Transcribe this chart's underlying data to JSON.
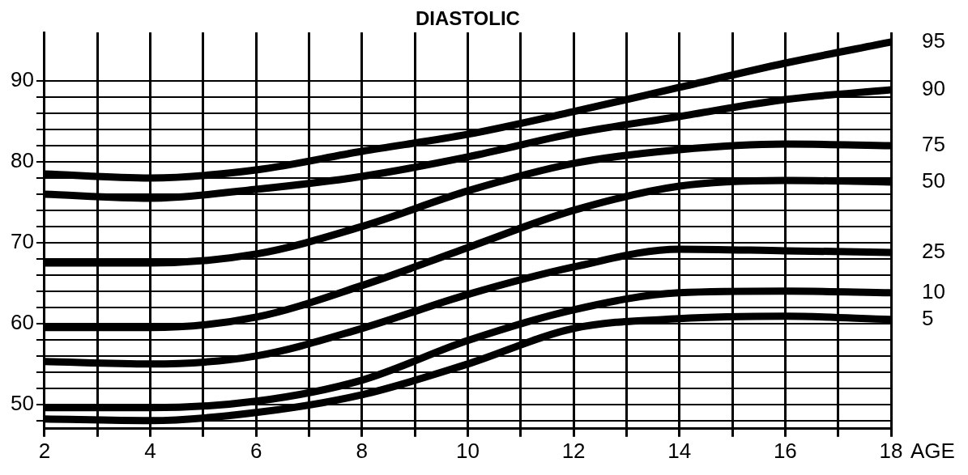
{
  "chart_data": {
    "type": "line",
    "title": "DIASTOLIC",
    "xlabel": "AGE",
    "x": [
      2,
      4,
      6,
      8,
      10,
      12,
      14,
      16,
      18
    ],
    "series": [
      {
        "name": "95",
        "color": "#000000",
        "values": [
          78.5,
          78,
          79,
          81.3,
          83.4,
          86.2,
          89.2,
          92.2,
          94.8
        ]
      },
      {
        "name": "90",
        "color": "#000000",
        "values": [
          76,
          75.5,
          76.6,
          78.2,
          80.6,
          83.5,
          85.6,
          87.7,
          88.9
        ]
      },
      {
        "name": "75",
        "color": "#000000",
        "values": [
          67.5,
          67.5,
          68.6,
          72,
          76.4,
          79.8,
          81.5,
          82.2,
          82
        ]
      },
      {
        "name": "50",
        "color": "#000000",
        "values": [
          59.5,
          59.5,
          60.8,
          64.7,
          69.4,
          74,
          77,
          77.7,
          77.5
        ]
      },
      {
        "name": "25",
        "color": "#000000",
        "values": [
          55.3,
          55,
          56,
          59.4,
          63.6,
          67,
          69.2,
          69,
          68.8
        ]
      },
      {
        "name": "10",
        "color": "#000000",
        "values": [
          49.6,
          49.6,
          50.4,
          53,
          57.9,
          61.7,
          63.8,
          64,
          63.8
        ]
      },
      {
        "name": "5",
        "color": "#000000",
        "values": [
          48.2,
          48,
          49,
          51.2,
          55,
          59.4,
          60.6,
          60.9,
          60.5
        ]
      }
    ],
    "xlim": [
      2,
      18
    ],
    "xticks": [
      2,
      {
        "value": 3,
        "label": null
      },
      4,
      {
        "value": 5,
        "label": null
      },
      6,
      {
        "value": 7,
        "label": null
      },
      8,
      {
        "value": 9,
        "label": null
      },
      10,
      {
        "value": 11,
        "label": null
      },
      12,
      {
        "value": 13,
        "label": null
      },
      14,
      {
        "value": 15,
        "label": null
      },
      16,
      {
        "value": 17,
        "label": null
      },
      18
    ],
    "ylim": [
      47,
      96
    ],
    "yticks": [
      {
        "value": 48,
        "label": null
      },
      50,
      {
        "value": 52,
        "label": null
      },
      {
        "value": 54,
        "label": null
      },
      {
        "value": 56,
        "label": null
      },
      {
        "value": 58,
        "label": null
      },
      60,
      {
        "value": 62,
        "label": null
      },
      {
        "value": 64,
        "label": null
      },
      {
        "value": 66,
        "label": null
      },
      {
        "value": 68,
        "label": null
      },
      70,
      {
        "value": 72,
        "label": null
      },
      {
        "value": 74,
        "label": null
      },
      {
        "value": 76,
        "label": null
      },
      {
        "value": 78,
        "label": null
      },
      80,
      {
        "value": 82,
        "label": null
      },
      {
        "value": 84,
        "label": null
      },
      {
        "value": 86,
        "label": null
      },
      {
        "value": 88,
        "label": null
      },
      90
    ],
    "grid": true,
    "legend": false,
    "marker": "none",
    "line_style": "solid"
  }
}
